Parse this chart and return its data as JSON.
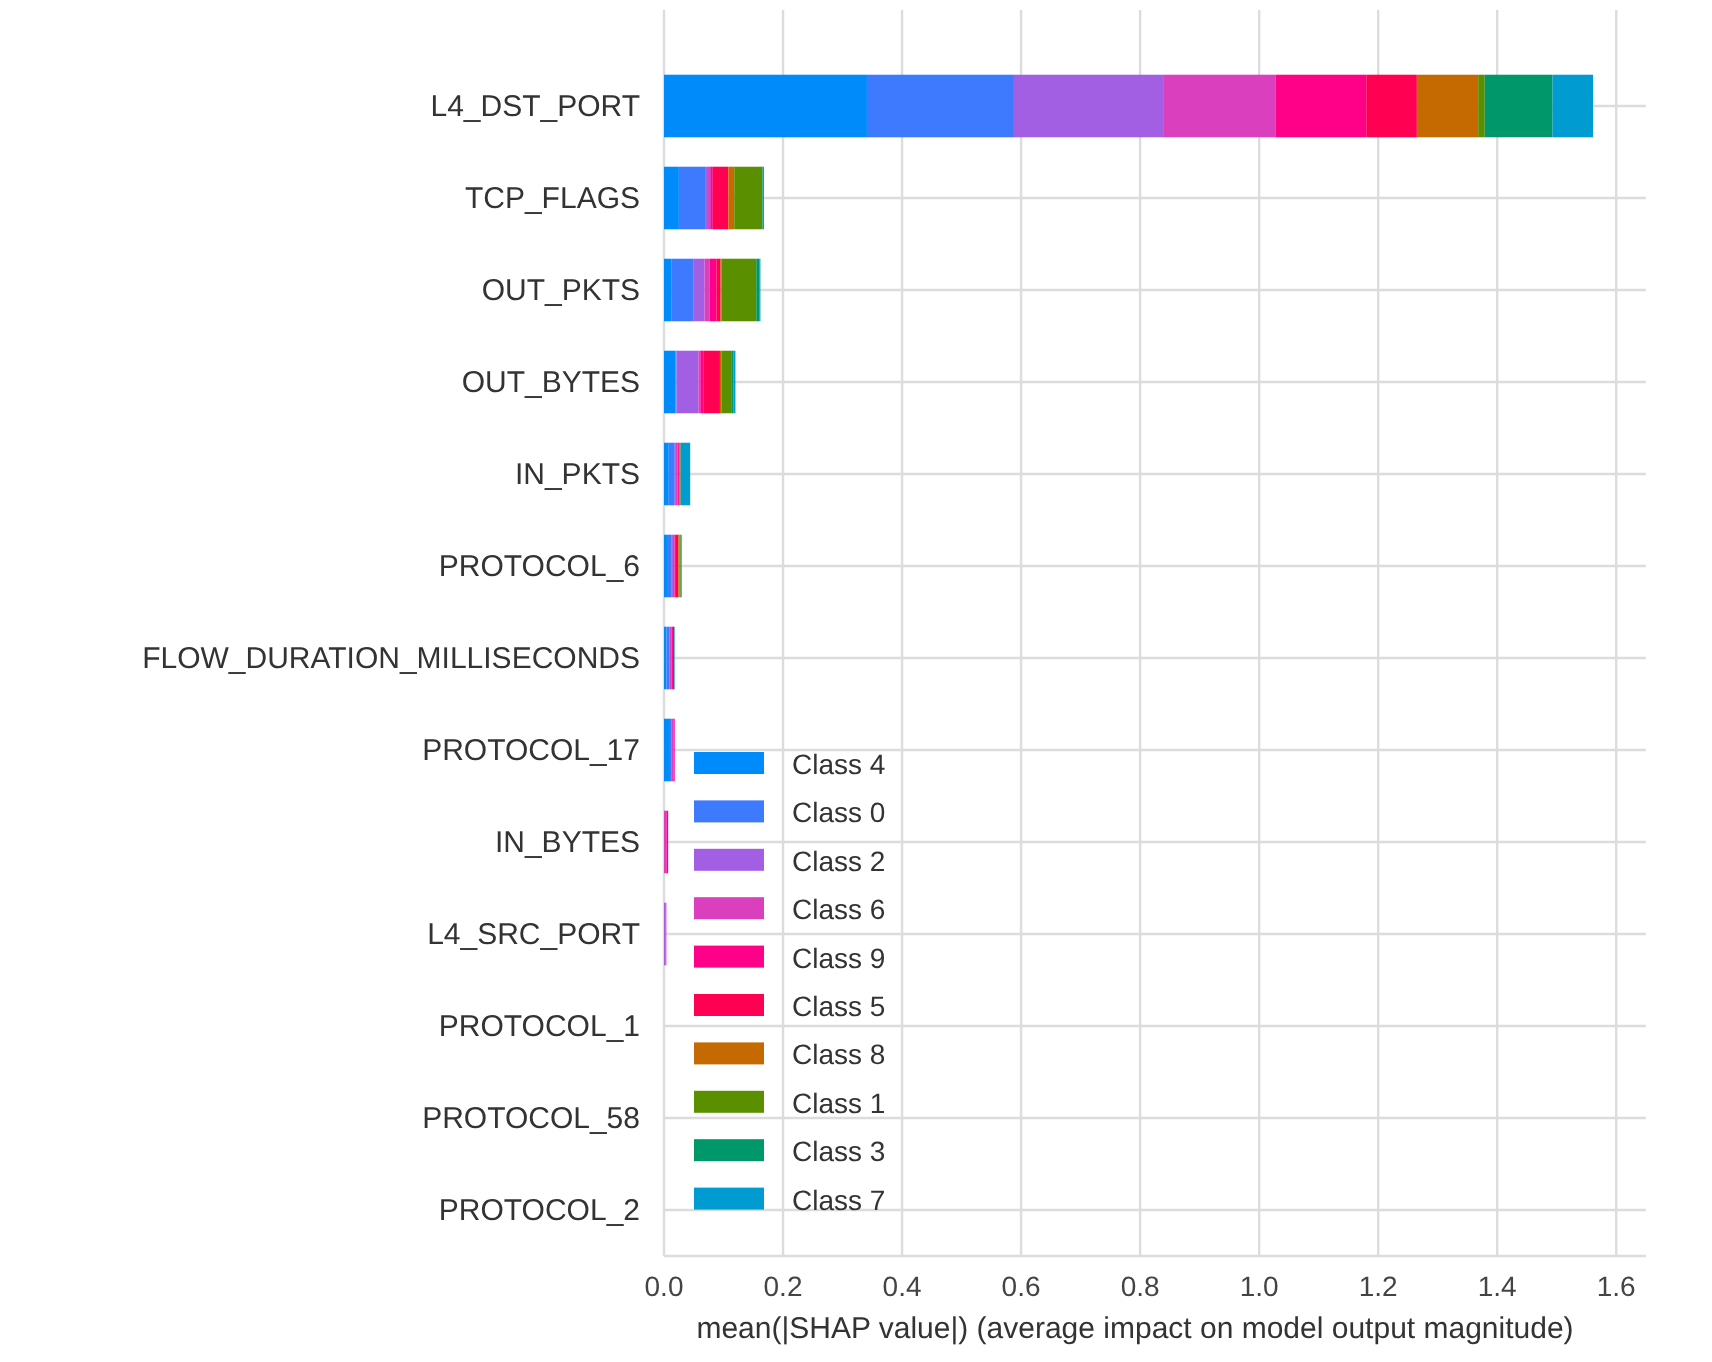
{
  "chart_data": {
    "type": "bar",
    "orientation": "horizontal",
    "stacked": true,
    "xlabel": "mean(|SHAP value|) (average impact on model output magnitude)",
    "categories": [
      "L4_DST_PORT",
      "TCP_FLAGS",
      "OUT_PKTS",
      "OUT_BYTES",
      "IN_PKTS",
      "PROTOCOL_6",
      "FLOW_DURATION_MILLISECONDS",
      "PROTOCOL_17",
      "IN_BYTES",
      "L4_SRC_PORT",
      "PROTOCOL_1",
      "PROTOCOL_58",
      "PROTOCOL_2"
    ],
    "series": [
      {
        "name": "Class 4",
        "color": "#008bfb",
        "values": [
          0.341,
          0.025,
          0.013,
          0.019,
          0.008,
          0.005,
          0.004,
          0.01,
          0,
          0,
          0,
          0,
          0
        ]
      },
      {
        "name": "Class 0",
        "color": "#3d7afd",
        "values": [
          0.247,
          0.044,
          0.036,
          0.002,
          0.01,
          0.008,
          0.005,
          0.003,
          0,
          0,
          0,
          0,
          0
        ]
      },
      {
        "name": "Class 2",
        "color": "#a35fe4",
        "values": [
          0.252,
          0.005,
          0.019,
          0.037,
          0.002,
          0.002,
          0,
          0,
          0,
          0.003,
          0,
          0,
          0
        ]
      },
      {
        "name": "Class 6",
        "color": "#da3fbe",
        "values": [
          0.188,
          0.005,
          0.009,
          0.003,
          0.003,
          0.003,
          0.004,
          0.003,
          0.004,
          0.001,
          0,
          0,
          0
        ]
      },
      {
        "name": "Class 9",
        "color": "#ff0088",
        "values": [
          0.152,
          0.003,
          0.011,
          0.005,
          0.002,
          0.002,
          0.002,
          0.002,
          0.003,
          0,
          0,
          0,
          0
        ]
      },
      {
        "name": "Class 5",
        "color": "#ff0052",
        "values": [
          0.085,
          0.026,
          0.007,
          0.028,
          0.001,
          0.004,
          0.002,
          0,
          0,
          0,
          0,
          0,
          0
        ]
      },
      {
        "name": "Class 8",
        "color": "#c56a00",
        "values": [
          0.103,
          0.01,
          0.002,
          0.003,
          0,
          0.002,
          0,
          0,
          0,
          0,
          0,
          0,
          0
        ]
      },
      {
        "name": "Class 1",
        "color": "#5a8f00",
        "values": [
          0.011,
          0.047,
          0.058,
          0.017,
          0.002,
          0.002,
          0,
          0,
          0,
          0,
          0,
          0,
          0
        ]
      },
      {
        "name": "Class 3",
        "color": "#00986a",
        "values": [
          0.114,
          0.001,
          0.005,
          0.003,
          0,
          0.001,
          0,
          0,
          0,
          0,
          0,
          0,
          0
        ]
      },
      {
        "name": "Class 7",
        "color": "#009cd1",
        "values": [
          0.068,
          0.002,
          0.002,
          0.003,
          0.016,
          0.001,
          0.001,
          0,
          0,
          0,
          0,
          0,
          0
        ]
      }
    ],
    "xlim": [
      0,
      1.65
    ],
    "xticks": [
      {
        "value": 0,
        "label": "0.0"
      },
      {
        "value": 0.2,
        "label": "0.2"
      },
      {
        "value": 0.4,
        "label": "0.4"
      },
      {
        "value": 0.6,
        "label": "0.6"
      },
      {
        "value": 0.8,
        "label": "0.8"
      },
      {
        "value": 1,
        "label": "1.0"
      },
      {
        "value": 1.2,
        "label": "1.2"
      },
      {
        "value": 1.4,
        "label": "1.4"
      },
      {
        "value": 1.6,
        "label": "1.6"
      }
    ],
    "grid": true,
    "legend": "bottom left"
  }
}
